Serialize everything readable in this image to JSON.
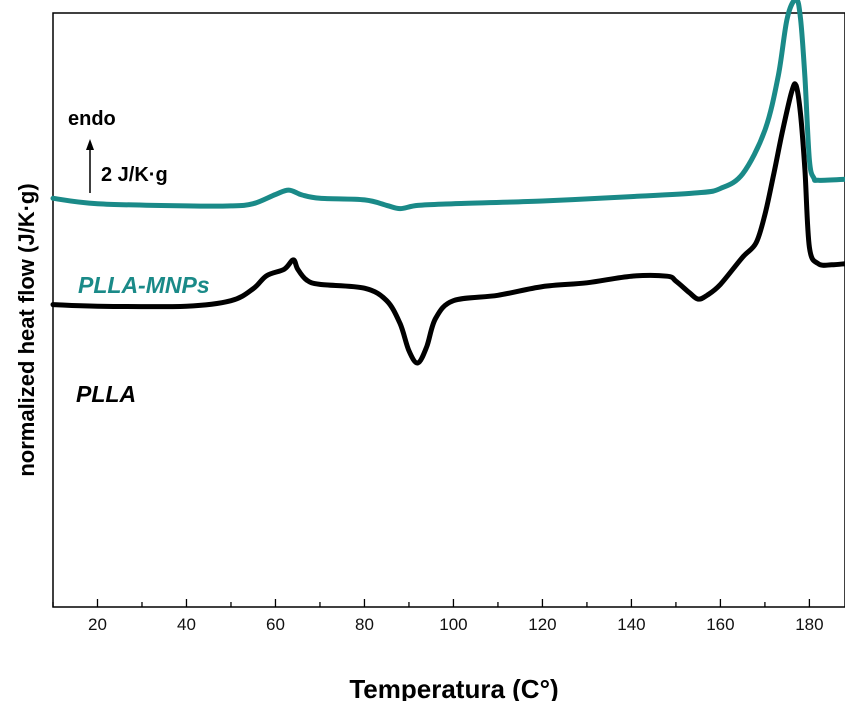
{
  "chart_data": {
    "type": "line",
    "title": "",
    "xlabel": "Temperatura (C°)",
    "ylabel": "normalized heat flow (J/K·g)",
    "xlim": [
      10,
      188
    ],
    "ylim": [
      -7.5,
      3.4
    ],
    "x_ticks": [
      20,
      40,
      60,
      80,
      100,
      120,
      140,
      160,
      180
    ],
    "y_ticks_shown": false,
    "grid": false,
    "legend": "inline labels",
    "scale_bar": {
      "label_top": "endo",
      "label_value": "2 J/K·g",
      "value": 2
    },
    "series": [
      {
        "name": "PLLA-MNPs",
        "color": "#1a8a88",
        "points": [
          [
            10,
            0.0
          ],
          [
            20,
            -0.1
          ],
          [
            40,
            -0.14
          ],
          [
            50,
            -0.14
          ],
          [
            55,
            -0.1
          ],
          [
            60,
            0.07
          ],
          [
            63,
            0.15
          ],
          [
            66,
            0.06
          ],
          [
            70,
            0.0
          ],
          [
            80,
            -0.03
          ],
          [
            85,
            -0.13
          ],
          [
            88,
            -0.19
          ],
          [
            92,
            -0.13
          ],
          [
            100,
            -0.1
          ],
          [
            120,
            -0.05
          ],
          [
            140,
            0.03
          ],
          [
            155,
            0.1
          ],
          [
            160,
            0.18
          ],
          [
            165,
            0.45
          ],
          [
            170,
            1.25
          ],
          [
            173,
            2.25
          ],
          [
            175,
            3.3
          ],
          [
            177,
            3.65
          ],
          [
            178,
            3.3
          ],
          [
            179,
            2.2
          ],
          [
            180,
            0.7
          ],
          [
            181,
            0.37
          ],
          [
            182,
            0.33
          ],
          [
            188,
            0.35
          ]
        ]
      },
      {
        "name": "PLLA",
        "color": "#000000",
        "points": [
          [
            10,
            -1.95
          ],
          [
            20,
            -1.98
          ],
          [
            40,
            -1.98
          ],
          [
            50,
            -1.88
          ],
          [
            55,
            -1.66
          ],
          [
            58,
            -1.42
          ],
          [
            62,
            -1.3
          ],
          [
            64,
            -1.13
          ],
          [
            65,
            -1.3
          ],
          [
            67,
            -1.5
          ],
          [
            70,
            -1.58
          ],
          [
            80,
            -1.65
          ],
          [
            85,
            -1.88
          ],
          [
            88,
            -2.3
          ],
          [
            90,
            -2.8
          ],
          [
            92,
            -3.02
          ],
          [
            94,
            -2.72
          ],
          [
            96,
            -2.2
          ],
          [
            100,
            -1.88
          ],
          [
            110,
            -1.78
          ],
          [
            120,
            -1.62
          ],
          [
            130,
            -1.55
          ],
          [
            140,
            -1.43
          ],
          [
            148,
            -1.43
          ],
          [
            150,
            -1.52
          ],
          [
            153,
            -1.73
          ],
          [
            155,
            -1.85
          ],
          [
            157,
            -1.78
          ],
          [
            160,
            -1.58
          ],
          [
            165,
            -1.08
          ],
          [
            168,
            -0.82
          ],
          [
            170,
            -0.3
          ],
          [
            172,
            0.45
          ],
          [
            174,
            1.25
          ],
          [
            176,
            1.95
          ],
          [
            177,
            2.07
          ],
          [
            178,
            1.55
          ],
          [
            179,
            0.5
          ],
          [
            180,
            -0.9
          ],
          [
            182,
            -1.2
          ],
          [
            185,
            -1.22
          ],
          [
            188,
            -1.2
          ]
        ]
      }
    ]
  }
}
